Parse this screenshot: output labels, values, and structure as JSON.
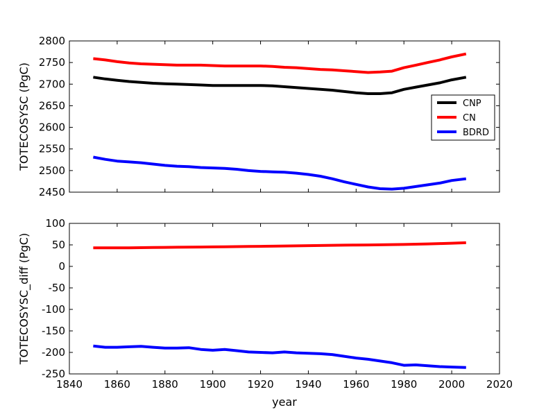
{
  "chart_data": [
    {
      "type": "line",
      "title": "",
      "xlabel": "",
      "ylabel": "TOTECOSYSC (PgC)",
      "xlim": [
        1840,
        2020
      ],
      "ylim": [
        2450,
        2800
      ],
      "xticks": [
        1840,
        1860,
        1880,
        1900,
        1920,
        1940,
        1960,
        1980,
        2000,
        2020
      ],
      "xtick_labels_visible": false,
      "yticks": [
        2450,
        2500,
        2550,
        2600,
        2650,
        2700,
        2750,
        2800
      ],
      "grid": false,
      "legend": {
        "position": "right",
        "entries": [
          "CNP",
          "CN",
          "BDRD"
        ]
      },
      "x": [
        1850,
        1855,
        1860,
        1865,
        1870,
        1875,
        1880,
        1885,
        1890,
        1895,
        1900,
        1905,
        1910,
        1915,
        1920,
        1925,
        1930,
        1935,
        1940,
        1945,
        1950,
        1955,
        1960,
        1965,
        1970,
        1975,
        1980,
        1985,
        1990,
        1995,
        2000,
        2006
      ],
      "series": [
        {
          "name": "CNP",
          "color": "#000000",
          "values": [
            2716,
            2712,
            2709,
            2706,
            2704,
            2702,
            2701,
            2700,
            2699,
            2698,
            2697,
            2697,
            2697,
            2697,
            2697,
            2696,
            2694,
            2692,
            2690,
            2688,
            2686,
            2683,
            2680,
            2678,
            2678,
            2680,
            2688,
            2693,
            2698,
            2703,
            2710,
            2716
          ]
        },
        {
          "name": "CN",
          "color": "#ff0000",
          "values": [
            2759,
            2756,
            2752,
            2749,
            2747,
            2746,
            2745,
            2744,
            2744,
            2744,
            2743,
            2742,
            2742,
            2742,
            2742,
            2741,
            2739,
            2738,
            2736,
            2734,
            2733,
            2731,
            2729,
            2727,
            2728,
            2730,
            2738,
            2744,
            2750,
            2756,
            2763,
            2770
          ]
        },
        {
          "name": "BDRD",
          "color": "#0000ff",
          "values": [
            2531,
            2526,
            2522,
            2520,
            2518,
            2515,
            2512,
            2510,
            2509,
            2507,
            2506,
            2505,
            2503,
            2500,
            2498,
            2497,
            2496,
            2494,
            2491,
            2487,
            2481,
            2474,
            2468,
            2462,
            2458,
            2457,
            2459,
            2463,
            2467,
            2471,
            2477,
            2481
          ]
        }
      ]
    },
    {
      "type": "line",
      "title": "",
      "xlabel": "year",
      "ylabel": "TOTECOSYSC_diff (PgC)",
      "xlim": [
        1840,
        2020
      ],
      "ylim": [
        -250,
        100
      ],
      "xticks": [
        1840,
        1860,
        1880,
        1900,
        1920,
        1940,
        1960,
        1980,
        2000,
        2020
      ],
      "yticks": [
        -250,
        -200,
        -150,
        -100,
        -50,
        0,
        50,
        100
      ],
      "grid": false,
      "x": [
        1850,
        1855,
        1860,
        1865,
        1870,
        1875,
        1880,
        1885,
        1890,
        1895,
        1900,
        1905,
        1910,
        1915,
        1920,
        1925,
        1930,
        1935,
        1940,
        1945,
        1950,
        1955,
        1960,
        1965,
        1970,
        1975,
        1980,
        1985,
        1990,
        1995,
        2000,
        2006
      ],
      "series": [
        {
          "name": "CN",
          "color": "#ff0000",
          "values": [
            43,
            43,
            43,
            43.3,
            43.6,
            44,
            44.2,
            44.5,
            44.8,
            45,
            45.3,
            45.6,
            46,
            46.3,
            46.6,
            47,
            47.4,
            47.8,
            48.2,
            48.6,
            49,
            49.3,
            49.6,
            49.9,
            50.2,
            50.6,
            51,
            51.6,
            52.3,
            53,
            53.8,
            55
          ]
        },
        {
          "name": "BDRD",
          "color": "#0000ff",
          "values": [
            -185,
            -188,
            -188,
            -187,
            -186,
            -188,
            -190,
            -190,
            -189,
            -193,
            -195,
            -193,
            -196,
            -199,
            -200,
            -201,
            -199,
            -201,
            -202,
            -203,
            -205,
            -209,
            -213,
            -216,
            -220,
            -224,
            -230,
            -229,
            -231,
            -233,
            -234,
            -235
          ]
        }
      ]
    }
  ]
}
